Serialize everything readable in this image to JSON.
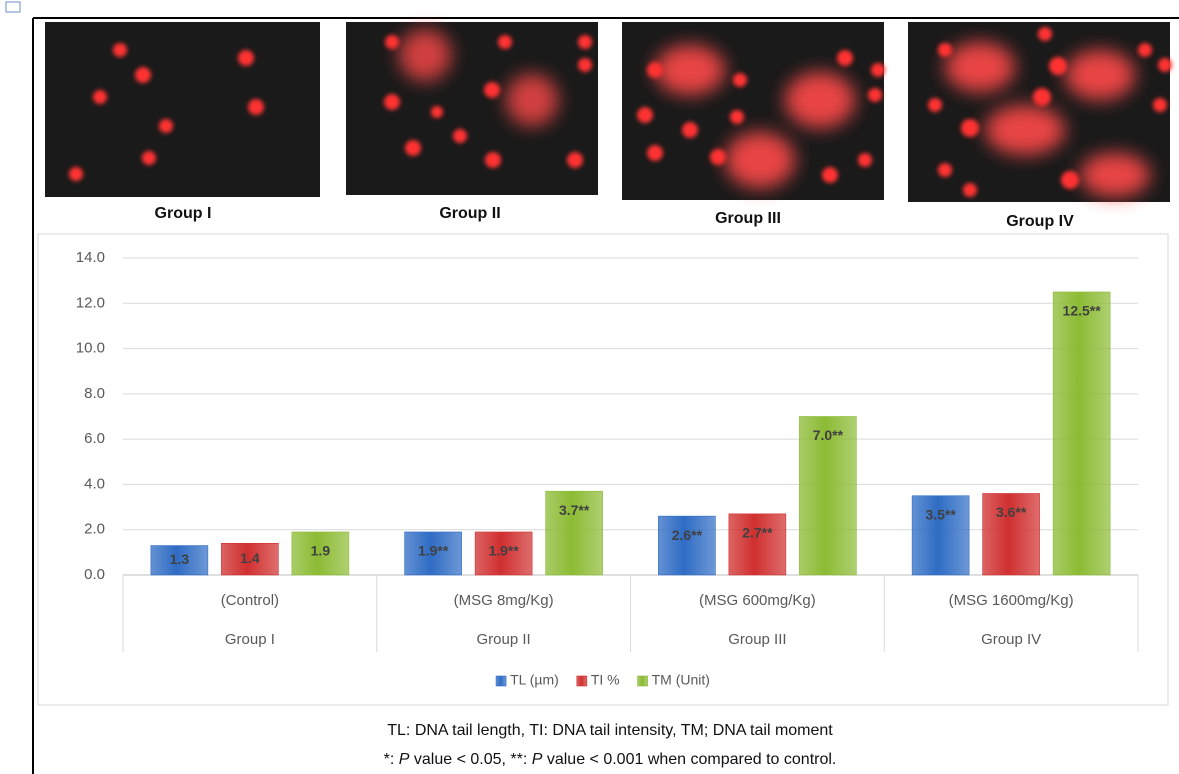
{
  "image_captions": [
    "Group I",
    "Group II",
    "Group III",
    "Group IV"
  ],
  "chart_data": {
    "type": "bar",
    "categories": [
      "(Control)",
      "(MSG 8mg/Kg)",
      "(MSG 600mg/Kg)",
      "(MSG 1600mg/Kg)"
    ],
    "category_groups": [
      "Group I",
      "Group II",
      "Group III",
      "Group IV"
    ],
    "series": [
      {
        "name": "TL (µm)",
        "color": "#2f6cc4",
        "values": [
          1.3,
          1.9,
          2.6,
          3.5
        ],
        "value_labels": [
          "1.3",
          "1.9**",
          "2.6**",
          "3.5**"
        ]
      },
      {
        "name": "TI %",
        "color": "#d02f2f",
        "values": [
          1.4,
          1.9,
          2.7,
          3.6
        ],
        "value_labels": [
          "1.4",
          "1.9**",
          "2.7**",
          "3.6**"
        ]
      },
      {
        "name": "TM (Unit)",
        "color": "#8cbb34",
        "values": [
          1.9,
          3.7,
          7.0,
          12.5
        ],
        "value_labels": [
          "1.9",
          "3.7**",
          "7.0**",
          "12.5**"
        ]
      }
    ],
    "ylim": [
      0,
      14
    ],
    "yticks": [
      {
        "value": 0,
        "label": "0.0"
      },
      {
        "value": 2,
        "label": "2.0"
      },
      {
        "value": 4,
        "label": "4.0"
      },
      {
        "value": 6,
        "label": "6.0"
      },
      {
        "value": 8,
        "label": "8.0"
      },
      {
        "value": 10,
        "label": "10.0"
      },
      {
        "value": 12,
        "label": "12.0"
      },
      {
        "value": 14,
        "label": "14.0"
      }
    ],
    "grid": true,
    "legend": "bottom"
  },
  "footnotes": {
    "line1": "TL: DNA tail length, TI: DNA tail intensity, TM; DNA tail moment",
    "line2": [
      "*: ",
      "P",
      " value < 0.05, **: ",
      "P",
      " value < 0.001 when compared to control."
    ]
  }
}
